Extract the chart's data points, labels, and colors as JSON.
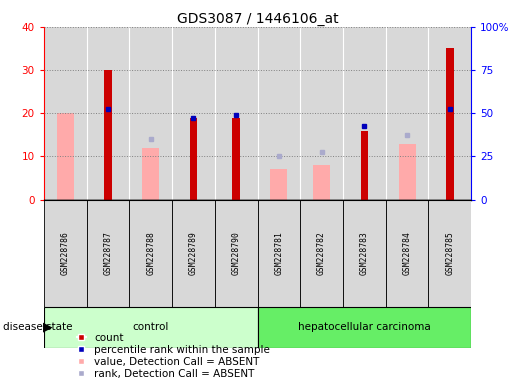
{
  "title": "GDS3087 / 1446106_at",
  "samples": [
    "GSM228786",
    "GSM228787",
    "GSM228788",
    "GSM228789",
    "GSM228790",
    "GSM228781",
    "GSM228782",
    "GSM228783",
    "GSM228784",
    "GSM228785"
  ],
  "groups": [
    "control",
    "control",
    "control",
    "control",
    "control",
    "hepatocellular carcinoma",
    "hepatocellular carcinoma",
    "hepatocellular carcinoma",
    "hepatocellular carcinoma",
    "hepatocellular carcinoma"
  ],
  "red_bars": [
    0,
    30,
    0,
    19,
    19,
    0,
    0,
    16,
    0,
    35
  ],
  "pink_bars": [
    20,
    0,
    12,
    0,
    0,
    7,
    8,
    0,
    13,
    0
  ],
  "blue_squares_left": [
    0,
    21,
    0,
    19,
    19.5,
    0,
    0,
    17,
    0,
    21
  ],
  "light_blue_squares_left": [
    0,
    0,
    14,
    0,
    0,
    10,
    11,
    0,
    15,
    0
  ],
  "red_bar_color": "#cc0000",
  "pink_bar_color": "#ffaaaa",
  "blue_sq_color": "#0000bb",
  "light_blue_sq_color": "#aaaacc",
  "ylim_left": [
    0,
    40
  ],
  "ylim_right": [
    0,
    100
  ],
  "yticks_left": [
    0,
    10,
    20,
    30,
    40
  ],
  "yticks_right": [
    0,
    25,
    50,
    75,
    100
  ],
  "yticklabels_right": [
    "0",
    "25",
    "50",
    "75",
    "100%"
  ],
  "group_colors": {
    "control": "#ccffcc",
    "hepatocellular carcinoma": "#66ee66"
  },
  "title_fontsize": 10,
  "label_fontsize": 7,
  "legend_fontsize": 7.5
}
